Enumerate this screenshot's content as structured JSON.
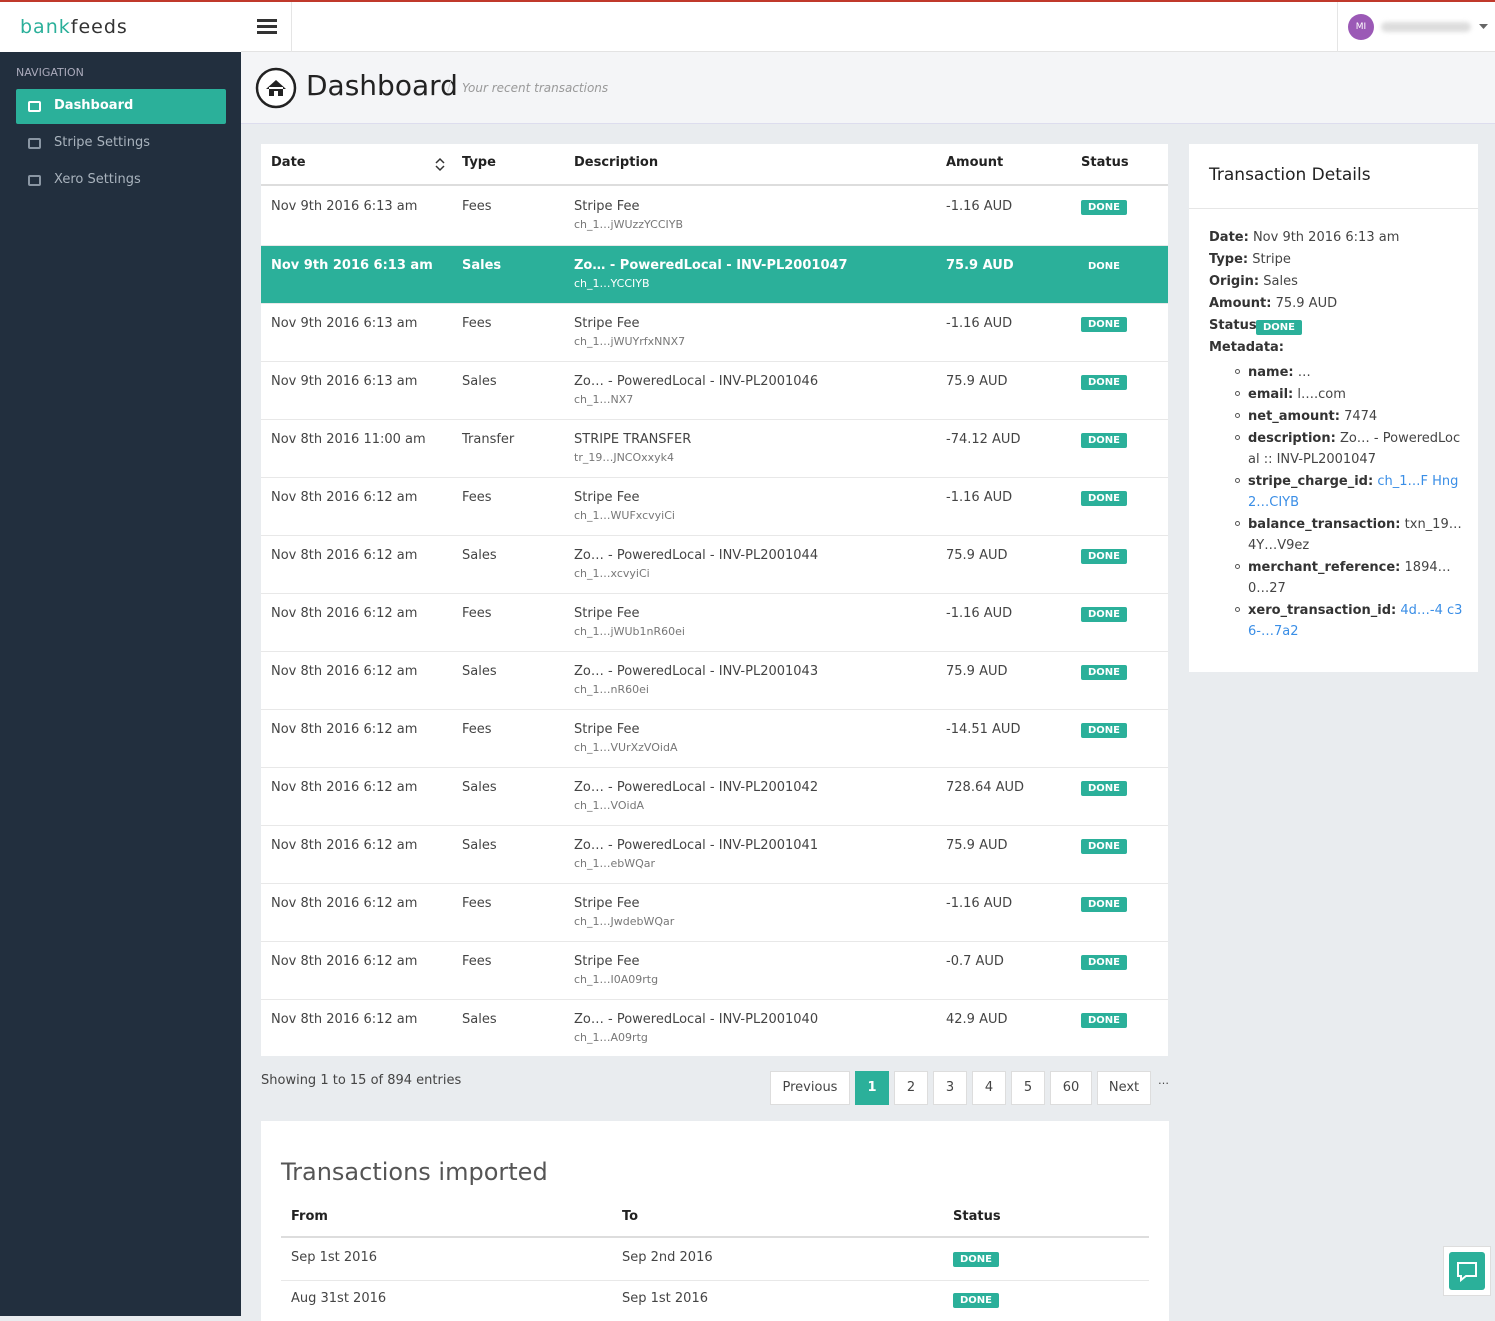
{
  "brand": {
    "part1": "bank",
    "part2": "feeds"
  },
  "user": {
    "initials": "MI"
  },
  "nav": {
    "heading": "NAVIGATION",
    "items": [
      "Dashboard",
      "Stripe Settings",
      "Xero Settings"
    ]
  },
  "header": {
    "title": "Dashboard",
    "subtitle": "Your recent transactions"
  },
  "table": {
    "columns": [
      "Date",
      "Type",
      "Description",
      "Amount",
      "Status"
    ],
    "rows": [
      {
        "date": "Nov 9th 2016 6:13 am",
        "type": "Fees",
        "description": "Stripe Fee",
        "reference": "ch_1…jWUzzYCCIYB",
        "amount": "-1.16 AUD",
        "status": "DONE"
      },
      {
        "date": "Nov 9th 2016 6:13 am",
        "type": "Sales",
        "description": "Zo… - PoweredLocal - INV-PL2001047",
        "reference": "ch_1…YCCIYB",
        "amount": "75.9 AUD",
        "status": "DONE"
      },
      {
        "date": "Nov 9th 2016 6:13 am",
        "type": "Fees",
        "description": "Stripe Fee",
        "reference": "ch_1…jWUYrfxNNX7",
        "amount": "-1.16 AUD",
        "status": "DONE"
      },
      {
        "date": "Nov 9th 2016 6:13 am",
        "type": "Sales",
        "description": "Zo… - PoweredLocal - INV-PL2001046",
        "reference": "ch_1…NX7",
        "amount": "75.9 AUD",
        "status": "DONE"
      },
      {
        "date": "Nov 8th 2016 11:00 am",
        "type": "Transfer",
        "description": "STRIPE TRANSFER",
        "reference": "tr_19…JNCOxxyk4",
        "amount": "-74.12 AUD",
        "status": "DONE"
      },
      {
        "date": "Nov 8th 2016 6:12 am",
        "type": "Fees",
        "description": "Stripe Fee",
        "reference": "ch_1…WUFxcvyiCi",
        "amount": "-1.16 AUD",
        "status": "DONE"
      },
      {
        "date": "Nov 8th 2016 6:12 am",
        "type": "Sales",
        "description": "Zo… - PoweredLocal - INV-PL2001044",
        "reference": "ch_1…xcvyiCi",
        "amount": "75.9 AUD",
        "status": "DONE"
      },
      {
        "date": "Nov 8th 2016 6:12 am",
        "type": "Fees",
        "description": "Stripe Fee",
        "reference": "ch_1…jWUb1nR60ei",
        "amount": "-1.16 AUD",
        "status": "DONE"
      },
      {
        "date": "Nov 8th 2016 6:12 am",
        "type": "Sales",
        "description": "Zo… - PoweredLocal - INV-PL2001043",
        "reference": "ch_1…nR60ei",
        "amount": "75.9 AUD",
        "status": "DONE"
      },
      {
        "date": "Nov 8th 2016 6:12 am",
        "type": "Fees",
        "description": "Stripe Fee",
        "reference": "ch_1…VUrXzVOidA",
        "amount": "-14.51 AUD",
        "status": "DONE"
      },
      {
        "date": "Nov 8th 2016 6:12 am",
        "type": "Sales",
        "description": "Zo… - PoweredLocal - INV-PL2001042",
        "reference": "ch_1…VOidA",
        "amount": "728.64 AUD",
        "status": "DONE"
      },
      {
        "date": "Nov 8th 2016 6:12 am",
        "type": "Sales",
        "description": "Zo… - PoweredLocal - INV-PL2001041",
        "reference": "ch_1…ebWQar",
        "amount": "75.9 AUD",
        "status": "DONE"
      },
      {
        "date": "Nov 8th 2016 6:12 am",
        "type": "Fees",
        "description": "Stripe Fee",
        "reference": "ch_1…JwdebWQar",
        "amount": "-1.16 AUD",
        "status": "DONE"
      },
      {
        "date": "Nov 8th 2016 6:12 am",
        "type": "Fees",
        "description": "Stripe Fee",
        "reference": "ch_1…I0A09rtg",
        "amount": "-0.7 AUD",
        "status": "DONE"
      },
      {
        "date": "Nov 8th 2016 6:12 am",
        "type": "Sales",
        "description": "Zo… - PoweredLocal - INV-PL2001040",
        "reference": "ch_1…A09rtg",
        "amount": "42.9 AUD",
        "status": "DONE"
      }
    ]
  },
  "pagination": {
    "info": "Showing 1 to 15 of 894 entries",
    "buttons": [
      "Previous",
      "1",
      "2",
      "3",
      "4",
      "5",
      "60",
      "Next"
    ],
    "ellipsis": "…"
  },
  "details": {
    "title": "Transaction Details",
    "fields": [
      {
        "label": "Date:",
        "value": "Nov 9th 2016 6:13 am"
      },
      {
        "label": "Type:",
        "value": "Stripe"
      },
      {
        "label": "Origin:",
        "value": "Sales"
      },
      {
        "label": "Amount:",
        "value": "75.9 AUD"
      }
    ],
    "status": {
      "label": "Status:",
      "value": "DONE"
    },
    "metadata_label": "Metadata:",
    "metadata": [
      {
        "label": "name:",
        "value": "…"
      },
      {
        "label": "email:",
        "value": "l….com"
      },
      {
        "label": "net_amount:",
        "value": "7474"
      },
      {
        "label": "description:",
        "value": "Zo… - PoweredLocal :: INV-PL2001047"
      },
      {
        "label": "stripe_charge_id:",
        "value": "ch_1…F Hng2…CIYB"
      },
      {
        "label": "balance_transaction:",
        "value": "txn_19… 4Y…V9ez"
      },
      {
        "label": "merchant_reference:",
        "value": "1894… 0…27"
      },
      {
        "label": "xero_transaction_id:",
        "value": "4d…-4 c36-…7a2"
      }
    ]
  },
  "imported": {
    "title": "Transactions imported",
    "columns": [
      "From",
      "To",
      "Status"
    ],
    "rows": [
      [
        "Sep 1st 2016",
        "Sep 2nd 2016",
        "DONE"
      ],
      [
        "Aug 31st 2016",
        "Sep 1st 2016",
        "DONE"
      ]
    ]
  }
}
